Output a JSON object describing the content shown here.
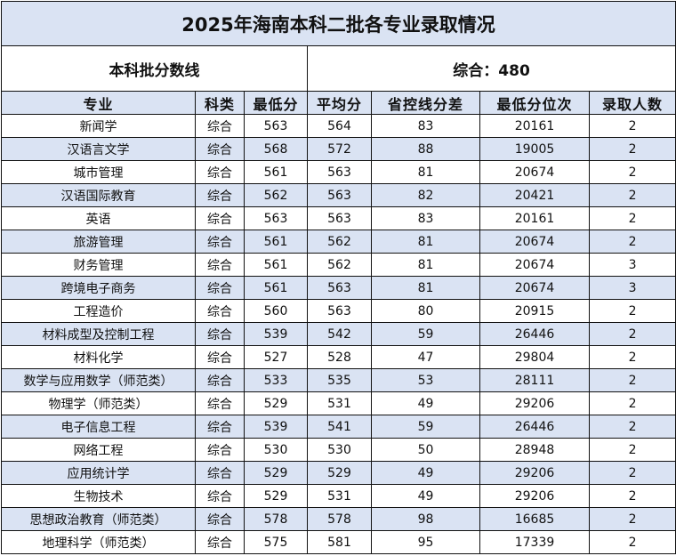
{
  "title": "2025年海南本科二批各专业录取情况",
  "cutoff": {
    "label": "本科批分数线",
    "value": "综合：480"
  },
  "columns": [
    "专业",
    "科类",
    "最低分",
    "平均分",
    "省控线分差",
    "最低分位次",
    "录取人数"
  ],
  "rows": [
    [
      "新闻学",
      "综合",
      "563",
      "564",
      "83",
      "20161",
      "2"
    ],
    [
      "汉语言文学",
      "综合",
      "568",
      "572",
      "88",
      "19005",
      "2"
    ],
    [
      "城市管理",
      "综合",
      "561",
      "563",
      "81",
      "20674",
      "2"
    ],
    [
      "汉语国际教育",
      "综合",
      "562",
      "563",
      "82",
      "20421",
      "2"
    ],
    [
      "英语",
      "综合",
      "563",
      "563",
      "83",
      "20161",
      "2"
    ],
    [
      "旅游管理",
      "综合",
      "561",
      "562",
      "81",
      "20674",
      "2"
    ],
    [
      "财务管理",
      "综合",
      "561",
      "562",
      "81",
      "20674",
      "3"
    ],
    [
      "跨境电子商务",
      "综合",
      "561",
      "563",
      "81",
      "20674",
      "3"
    ],
    [
      "工程造价",
      "综合",
      "560",
      "563",
      "80",
      "20915",
      "2"
    ],
    [
      "材料成型及控制工程",
      "综合",
      "539",
      "542",
      "59",
      "26446",
      "2"
    ],
    [
      "材料化学",
      "综合",
      "527",
      "528",
      "47",
      "29804",
      "2"
    ],
    [
      "数学与应用数学（师范类）",
      "综合",
      "533",
      "535",
      "53",
      "28111",
      "2"
    ],
    [
      "物理学（师范类）",
      "综合",
      "529",
      "531",
      "49",
      "29206",
      "2"
    ],
    [
      "电子信息工程",
      "综合",
      "539",
      "541",
      "59",
      "26446",
      "2"
    ],
    [
      "网络工程",
      "综合",
      "530",
      "530",
      "50",
      "28948",
      "2"
    ],
    [
      "应用统计学",
      "综合",
      "529",
      "529",
      "49",
      "29206",
      "2"
    ],
    [
      "生物技术",
      "综合",
      "529",
      "531",
      "49",
      "29206",
      "2"
    ],
    [
      "思想政治教育（师范类）",
      "综合",
      "578",
      "578",
      "98",
      "16685",
      "2"
    ],
    [
      "地理科学（师范类）",
      "综合",
      "575",
      "581",
      "95",
      "17339",
      "2"
    ]
  ],
  "colors": {
    "stripe": "#dae3f3",
    "border": "#111111"
  }
}
